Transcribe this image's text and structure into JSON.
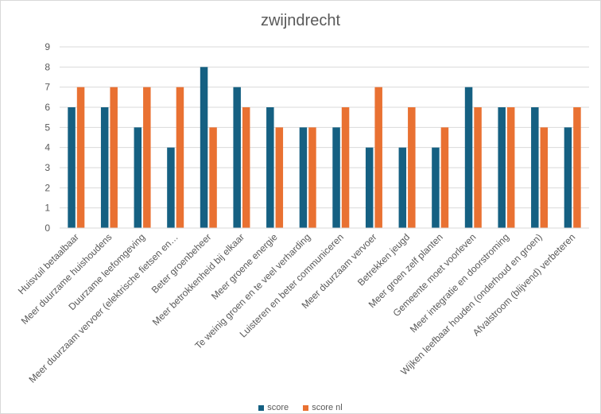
{
  "chart_data": {
    "type": "bar",
    "title": "zwijndrecht",
    "categories": [
      "Huisvuil betaalbaar",
      "Meer duurzame huishoudens",
      "Duurzame leefomgeving",
      "Meer duurzaam vervoer (elektrische fietsen en…",
      "Beter groenbeheer",
      "Meer betrokkenheid bij elkaar",
      "Meer groene energie",
      "Te weinig groen en te veel verharding",
      "Luisteren en beter communiceren",
      "Meer duurzaam vervoer",
      "Betrekken jeugd",
      "Meer groen zelf planten",
      "Gemeente moet voorleven",
      "Meer integratie en doorstroming",
      "Wijken leefbaar houden (onderhoud en groen)",
      "Afvalstroom (blijvend) verbeteren"
    ],
    "series": [
      {
        "name": "score",
        "color": "#156082",
        "values": [
          6,
          6,
          5,
          4,
          8,
          7,
          6,
          5,
          5,
          4,
          4,
          4,
          7,
          6,
          6,
          5
        ]
      },
      {
        "name": "score nl",
        "color": "#e97132",
        "values": [
          7,
          7,
          7,
          7,
          5,
          6,
          5,
          5,
          6,
          7,
          6,
          5,
          6,
          6,
          5,
          6
        ]
      }
    ],
    "yticks": [
      "0",
      "1",
      "2",
      "3",
      "4",
      "5",
      "6",
      "7",
      "8",
      "9"
    ],
    "ylim": [
      0,
      9
    ],
    "grid": true,
    "legend_position": "bottom"
  }
}
